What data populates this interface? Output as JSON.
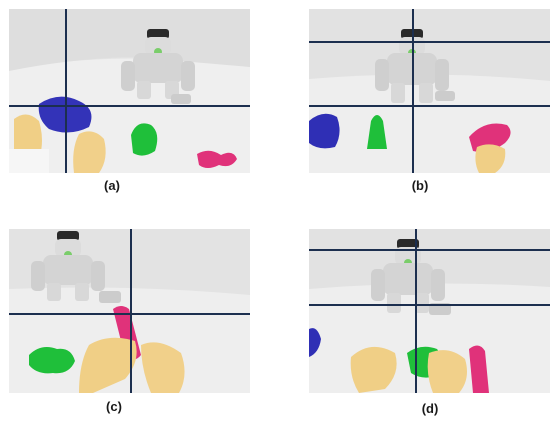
{
  "figure": {
    "panels": [
      {
        "id": "a",
        "caption": "(a)"
      },
      {
        "id": "b",
        "caption": "(b)"
      },
      {
        "id": "c",
        "caption": "(c)"
      },
      {
        "id": "d",
        "caption": "(d)"
      }
    ]
  },
  "colors": {
    "backdrop": "#e6e6e6",
    "floor": "#eeeeee",
    "crosshair": "#1c2f4f",
    "green_object": "#1fbf3a",
    "pink_object": "#e0327a",
    "blue_object": "#2f2fb5",
    "hand_skin": "#f0cf86",
    "robot_body": "#d8d8d8"
  }
}
